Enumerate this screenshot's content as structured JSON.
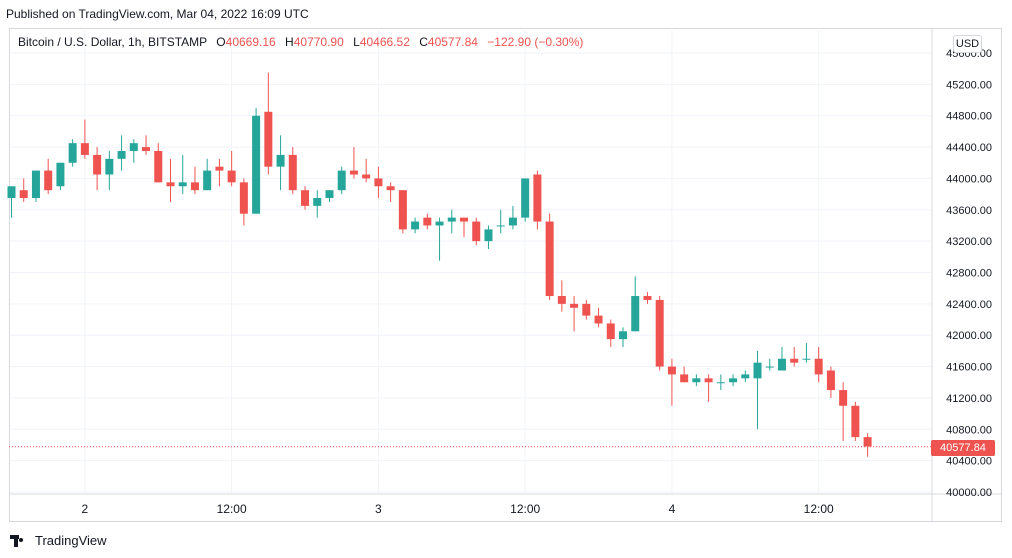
{
  "caption": "Published on TradingView.com, Mar 04, 2022 16:09 UTC",
  "legend": {
    "symbol": "Bitcoin / U.S. Dollar, 1h, BITSTAMP",
    "open_label": "O",
    "open": "40669.16",
    "high_label": "H",
    "high": "40770.90",
    "low_label": "L",
    "low": "40466.52",
    "close_label": "C",
    "close": "40577.84",
    "change": "−122.90 (−0.30%)"
  },
  "currency_button": "USD",
  "last_price_tag": "40577.84",
  "footer": {
    "brand": "TradingView",
    "logo_icon": "tradingview-logo-icon"
  },
  "colors": {
    "up": "#26a69a",
    "down": "#ef5350",
    "grid": "#f0f3fa",
    "text": "#131722"
  },
  "chart_data": {
    "type": "candlestick",
    "title": "Bitcoin / U.S. Dollar, 1h, BITSTAMP",
    "y_ticks": [
      "45600.00",
      "45200.00",
      "44800.00",
      "44400.00",
      "44000.00",
      "43600.00",
      "43200.00",
      "42800.00",
      "42400.00",
      "42000.00",
      "41600.00",
      "41200.00",
      "40800.00",
      "40400.00",
      "40000.00"
    ],
    "x_ticks": [
      {
        "label": "2",
        "index": 6
      },
      {
        "label": "12:00",
        "index": 18
      },
      {
        "label": "3",
        "index": 30
      },
      {
        "label": "12:00",
        "index": 42
      },
      {
        "label": "4",
        "index": 54
      },
      {
        "label": "12:00",
        "index": 66
      }
    ],
    "ylim": [
      40000,
      45600
    ],
    "last_price": 40577.84,
    "grid": true,
    "candles": [
      [
        43750,
        43900,
        43500,
        43900
      ],
      [
        43850,
        44000,
        43700,
        43750
      ],
      [
        43750,
        44100,
        43700,
        44100
      ],
      [
        44100,
        44250,
        43800,
        43850
      ],
      [
        43900,
        44200,
        43850,
        44200
      ],
      [
        44200,
        44500,
        44150,
        44450
      ],
      [
        44450,
        44750,
        44250,
        44300
      ],
      [
        44300,
        44400,
        43850,
        44050
      ],
      [
        44050,
        44350,
        43850,
        44250
      ],
      [
        44250,
        44550,
        44100,
        44350
      ],
      [
        44350,
        44500,
        44200,
        44450
      ],
      [
        44400,
        44550,
        44300,
        44350
      ],
      [
        44350,
        44450,
        43950,
        43950
      ],
      [
        43950,
        44250,
        43700,
        43900
      ],
      [
        43900,
        44300,
        43800,
        43950
      ],
      [
        43950,
        44150,
        43800,
        43850
      ],
      [
        43850,
        44250,
        43850,
        44100
      ],
      [
        44150,
        44250,
        43900,
        44100
      ],
      [
        44100,
        44350,
        43900,
        43950
      ],
      [
        43950,
        44000,
        43400,
        43550
      ],
      [
        43550,
        44900,
        43550,
        44800
      ],
      [
        44850,
        45350,
        44050,
        44150
      ],
      [
        44150,
        44550,
        43850,
        44300
      ],
      [
        44300,
        44400,
        43800,
        43850
      ],
      [
        43850,
        43900,
        43600,
        43650
      ],
      [
        43650,
        43850,
        43500,
        43750
      ],
      [
        43750,
        43850,
        43700,
        43850
      ],
      [
        43850,
        44150,
        43800,
        44100
      ],
      [
        44100,
        44400,
        44000,
        44050
      ],
      [
        44050,
        44250,
        43950,
        44000
      ],
      [
        44000,
        44150,
        43750,
        43900
      ],
      [
        43900,
        43950,
        43700,
        43850
      ],
      [
        43850,
        43850,
        43300,
        43350
      ],
      [
        43350,
        43500,
        43300,
        43450
      ],
      [
        43500,
        43550,
        43350,
        43400
      ],
      [
        43400,
        43500,
        42950,
        43450
      ],
      [
        43450,
        43600,
        43300,
        43500
      ],
      [
        43500,
        43500,
        43250,
        43450
      ],
      [
        43450,
        43500,
        43150,
        43200
      ],
      [
        43200,
        43400,
        43100,
        43350
      ],
      [
        43400,
        43600,
        43300,
        43400
      ],
      [
        43400,
        43650,
        43350,
        43500
      ],
      [
        43500,
        44000,
        43450,
        44000
      ],
      [
        44050,
        44100,
        43350,
        43450
      ],
      [
        43450,
        43550,
        42450,
        42500
      ],
      [
        42500,
        42700,
        42300,
        42400
      ],
      [
        42400,
        42500,
        42050,
        42350
      ],
      [
        42400,
        42450,
        42200,
        42250
      ],
      [
        42250,
        42350,
        42100,
        42150
      ],
      [
        42150,
        42200,
        41850,
        41950
      ],
      [
        41950,
        42100,
        41850,
        42050
      ],
      [
        42050,
        42750,
        42050,
        42500
      ],
      [
        42500,
        42550,
        42400,
        42450
      ],
      [
        42450,
        42500,
        41550,
        41600
      ],
      [
        41600,
        41700,
        41100,
        41500
      ],
      [
        41500,
        41600,
        41400,
        41400
      ],
      [
        41400,
        41500,
        41350,
        41450
      ],
      [
        41450,
        41500,
        41150,
        41400
      ],
      [
        41400,
        41500,
        41300,
        41400
      ],
      [
        41400,
        41500,
        41350,
        41450
      ],
      [
        41450,
        41550,
        41400,
        41500
      ],
      [
        41450,
        41800,
        40800,
        41650
      ],
      [
        41600,
        41700,
        41550,
        41600
      ],
      [
        41550,
        41850,
        41550,
        41700
      ],
      [
        41700,
        41850,
        41600,
        41650
      ],
      [
        41700,
        41900,
        41650,
        41700
      ],
      [
        41700,
        41850,
        41400,
        41500
      ],
      [
        41550,
        41600,
        41200,
        41300
      ],
      [
        41300,
        41400,
        40650,
        41100
      ],
      [
        41100,
        41150,
        40650,
        40700
      ],
      [
        40700,
        40750,
        40450,
        40580
      ]
    ]
  }
}
